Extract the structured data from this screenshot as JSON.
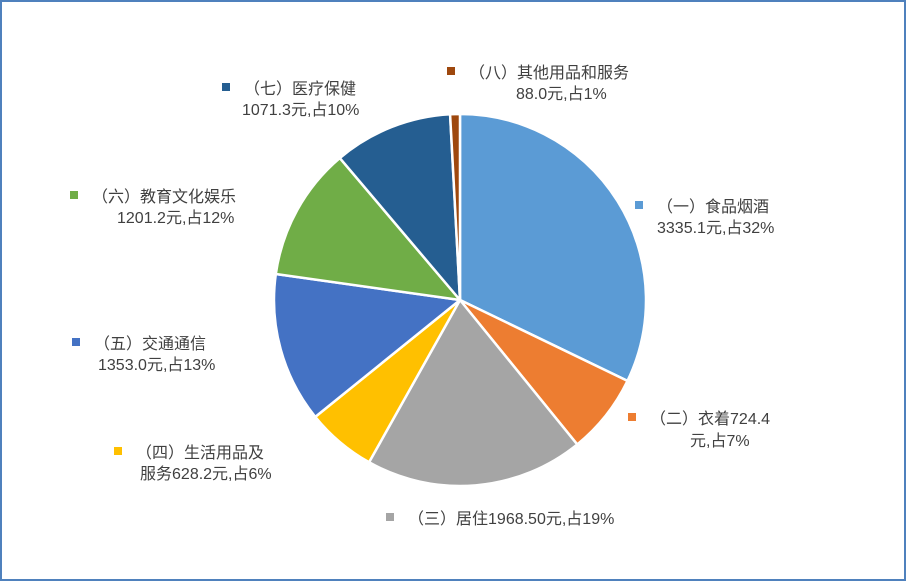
{
  "chart_data": {
    "type": "pie",
    "title": "",
    "unit": "元",
    "slices": [
      {
        "name": "（一）食品烟酒",
        "value": 3335.1,
        "percent": 32,
        "value_text": "3335.1元,占32%",
        "color": "#5b9bd5"
      },
      {
        "name": "（二）衣着",
        "value": 724.4,
        "percent": 7,
        "value_text": "724.4",
        "value_text_2": "元,占7%",
        "color": "#ed7d31"
      },
      {
        "name": "（三）居住",
        "value": 1968.5,
        "percent": 19,
        "value_text": "1968.50元,占19%",
        "color": "#a5a5a5"
      },
      {
        "name": "（四）生活用品及",
        "name_2": "服务",
        "value": 628.2,
        "percent": 6,
        "value_text": "628.2元,占6%",
        "color": "#ffc000"
      },
      {
        "name": "（五）交通通信",
        "value": 1353.0,
        "percent": 13,
        "value_text": "1353.0元,占13%",
        "color": "#4472c4"
      },
      {
        "name": "（六）教育文化娱乐",
        "value": 1201.2,
        "percent": 12,
        "value_text": "1201.2元,占12%",
        "color": "#70ad47"
      },
      {
        "name": "（七）医疗保健",
        "value": 1071.3,
        "percent": 10,
        "value_text": "1071.3元,占10%",
        "color": "#255e91"
      },
      {
        "name": "（八）其他用品和服务",
        "value": 88.0,
        "percent": 1,
        "value_text": "88.0元,占1%",
        "color": "#9e480e"
      }
    ]
  }
}
